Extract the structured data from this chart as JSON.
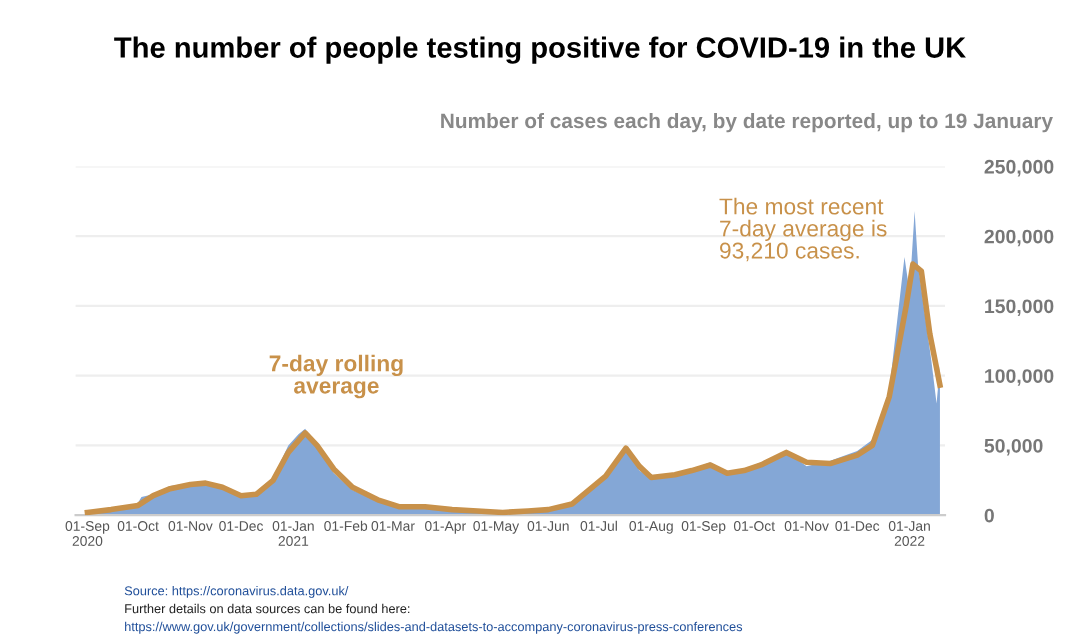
{
  "chart_data": {
    "type": "area",
    "title": "The number of people testing positive for COVID-19 in the UK",
    "subtitle": "Number of cases each day, by date reported, up to 19 January",
    "annotations": [
      "7-day rolling\naverage",
      "The most recent\n7-day average is\n93,210 cases.",
      "Source: https://coronavirus.data.gov.uk/",
      "Further details on data sources can be found here:",
      "https://www.gov.uk/government/collections/slides-and-datasets-to-accompany-coronavirus-press-conferences"
    ],
    "series": [
      {
        "color": "#84a7d6",
        "x": [
          "2020-09-01",
          "2020-09-15",
          "2020-09-30",
          "2020-10-03",
          "2020-10-10",
          "2020-10-20",
          "2020-11-01",
          "2020-11-10",
          "2020-11-20",
          "2020-12-01",
          "2020-12-10",
          "2020-12-20",
          "2020-12-29",
          "2021-01-04",
          "2021-01-08",
          "2021-01-15",
          "2021-01-25",
          "2021-02-05",
          "2021-02-20",
          "2021-03-05",
          "2021-03-20",
          "2021-04-05",
          "2021-04-20",
          "2021-05-05",
          "2021-05-20",
          "2021-06-01",
          "2021-06-15",
          "2021-06-25",
          "2021-07-05",
          "2021-07-17",
          "2021-07-25",
          "2021-08-01",
          "2021-08-15",
          "2021-08-25",
          "2021-09-05",
          "2021-09-15",
          "2021-09-25",
          "2021-10-05",
          "2021-10-20",
          "2021-11-01",
          "2021-11-15",
          "2021-12-01",
          "2021-12-10",
          "2021-12-20",
          "2021-12-29",
          "2022-01-01",
          "2022-01-04",
          "2022-01-06",
          "2022-01-10",
          "2022-01-14",
          "2022-01-17",
          "2022-01-19"
        ],
        "values": [
          2000,
          4000,
          7000,
          13000,
          15000,
          21000,
          23000,
          24000,
          19000,
          13000,
          17000,
          27000,
          50000,
          58000,
          62000,
          48000,
          30000,
          18000,
          10000,
          6000,
          6000,
          3000,
          3000,
          2000,
          3000,
          4000,
          8000,
          19000,
          27000,
          50000,
          32000,
          26000,
          30000,
          33000,
          38000,
          30000,
          33000,
          38000,
          46000,
          35000,
          39000,
          46000,
          54000,
          90000,
          185000,
          160000,
          218000,
          180000,
          145000,
          110000,
          80000,
          107000
        ]
      },
      {
        "type": "line",
        "color": "#c8914a",
        "x": [
          "2020-09-01",
          "2020-09-15",
          "2020-10-01",
          "2020-10-10",
          "2020-10-20",
          "2020-11-01",
          "2020-11-10",
          "2020-11-20",
          "2020-12-01",
          "2020-12-10",
          "2020-12-20",
          "2020-12-29",
          "2021-01-08",
          "2021-01-15",
          "2021-01-25",
          "2021-02-05",
          "2021-02-20",
          "2021-03-05",
          "2021-03-20",
          "2021-04-05",
          "2021-04-20",
          "2021-05-05",
          "2021-05-20",
          "2021-06-01",
          "2021-06-15",
          "2021-06-25",
          "2021-07-05",
          "2021-07-17",
          "2021-07-25",
          "2021-08-01",
          "2021-08-15",
          "2021-08-25",
          "2021-09-05",
          "2021-09-15",
          "2021-09-25",
          "2021-10-05",
          "2021-10-20",
          "2021-11-01",
          "2021-11-15",
          "2021-12-01",
          "2021-12-10",
          "2021-12-20",
          "2021-12-30",
          "2022-01-03",
          "2022-01-08",
          "2022-01-13",
          "2022-01-19"
        ],
        "values": [
          2000,
          4000,
          7000,
          14000,
          19000,
          22000,
          23000,
          20000,
          14000,
          15000,
          25000,
          45000,
          59000,
          50000,
          33000,
          20000,
          11000,
          6000,
          6000,
          4000,
          3000,
          2000,
          3000,
          4000,
          8000,
          18000,
          28000,
          48000,
          35000,
          27000,
          29000,
          32000,
          36000,
          30000,
          32000,
          36000,
          45000,
          38000,
          37000,
          43000,
          50000,
          85000,
          150000,
          180000,
          175000,
          130000,
          93210
        ]
      }
    ],
    "xlim": [
      "2020-08-25",
      "2022-01-22"
    ],
    "xticks": [
      {
        "value": "2020-09-01",
        "label": "01-Sep\n2020"
      },
      {
        "value": "2020-10-01",
        "label": "01-Oct"
      },
      {
        "value": "2020-11-01",
        "label": "01-Nov"
      },
      {
        "value": "2020-12-01",
        "label": "01-Dec"
      },
      {
        "value": "2021-01-01",
        "label": "01-Jan\n2021"
      },
      {
        "value": "2021-02-01",
        "label": "01-Feb"
      },
      {
        "value": "2021-03-01",
        "label": "01-Mar"
      },
      {
        "value": "2021-04-01",
        "label": "01-Apr"
      },
      {
        "value": "2021-05-01",
        "label": "01-May"
      },
      {
        "value": "2021-06-01",
        "label": "01-Jun"
      },
      {
        "value": "2021-07-01",
        "label": "01-Jul"
      },
      {
        "value": "2021-08-01",
        "label": "01-Aug"
      },
      {
        "value": "2021-09-01",
        "label": "01-Sep"
      },
      {
        "value": "2021-10-01",
        "label": "01-Oct"
      },
      {
        "value": "2021-11-01",
        "label": "01-Nov"
      },
      {
        "value": "2021-12-01",
        "label": "01-Dec"
      },
      {
        "value": "2022-01-01",
        "label": "01-Jan\n2022"
      }
    ],
    "ylim": [
      0,
      250000
    ],
    "yticks": [
      {
        "value": 0,
        "label": "0"
      },
      {
        "value": 50000,
        "label": "50,000"
      },
      {
        "value": 100000,
        "label": "100,000"
      },
      {
        "value": 150000,
        "label": "150,000"
      },
      {
        "value": 200000,
        "label": "200,000"
      },
      {
        "value": 250000,
        "label": "250,000"
      }
    ],
    "grid": "y",
    "legend": false
  }
}
